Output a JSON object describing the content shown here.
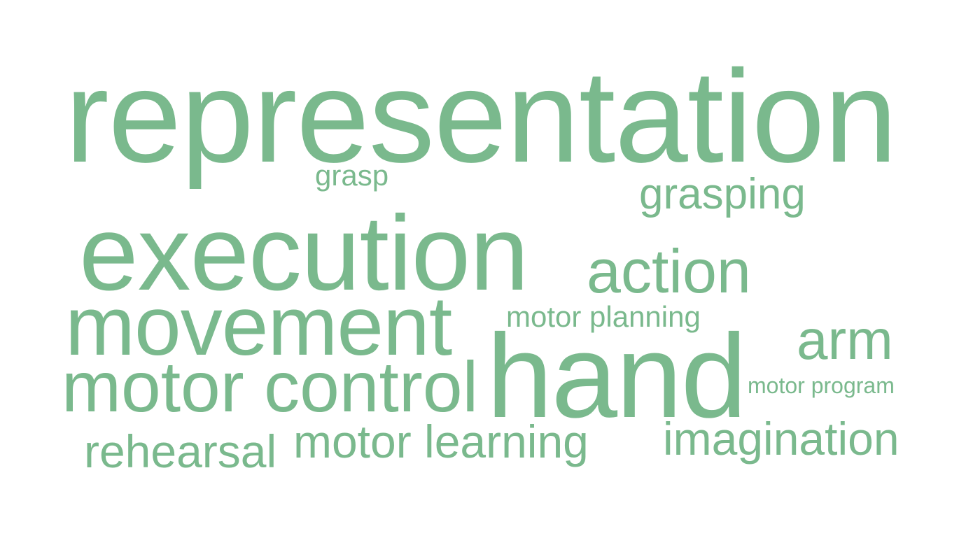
{
  "word_cloud": {
    "color": "#7ab98d",
    "background": "#ffffff",
    "words": {
      "representation": "representation",
      "grasp": "grasp",
      "grasping": "grasping",
      "execution": "execution",
      "action": "action",
      "movement": "movement",
      "motor_planning": "motor planning",
      "arm": "arm",
      "motor_control": "motor control",
      "hand": "hand",
      "motor_program": "motor program",
      "rehearsal": "rehearsal",
      "motor_learning": "motor learning",
      "imagination": "imagination"
    }
  }
}
